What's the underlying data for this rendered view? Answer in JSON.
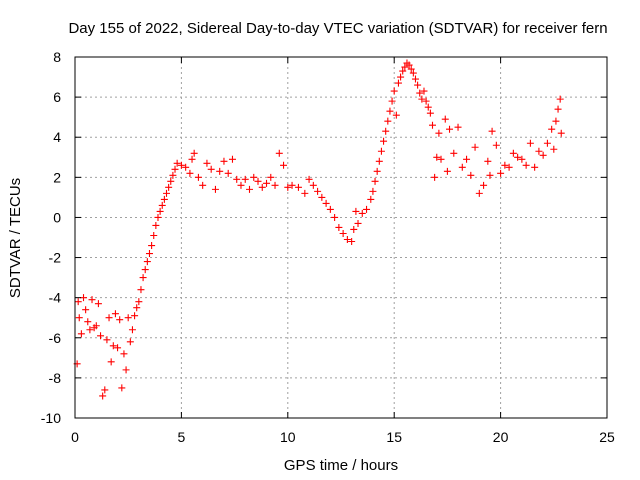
{
  "chart_data": {
    "type": "scatter",
    "title": "Day 155 of 2022, Sidereal Day-to-day VTEC variation (SDTVAR) for receiver fern",
    "xlabel": "GPS time / hours",
    "ylabel": "SDTVAR / TECUs",
    "xlim": [
      0,
      25
    ],
    "ylim": [
      -10,
      8
    ],
    "xticks": [
      0,
      5,
      10,
      15,
      20,
      25
    ],
    "xtick_labels": [
      "0",
      "5",
      "10",
      "15",
      "20",
      "25"
    ],
    "yticks": [
      -10,
      -8,
      -6,
      -4,
      -2,
      0,
      2,
      4,
      6,
      8
    ],
    "ytick_labels": [
      "-10",
      "-8",
      "-6",
      "-4",
      "-2",
      "0",
      "2",
      "4",
      "6",
      "8"
    ],
    "grid": true,
    "marker": "+",
    "color": "#ff0000",
    "series": [
      {
        "name": "SDTVAR",
        "points": [
          [
            0.1,
            -7.3
          ],
          [
            0.15,
            -4.2
          ],
          [
            0.2,
            -5.0
          ],
          [
            0.3,
            -5.8
          ],
          [
            0.4,
            -4.0
          ],
          [
            0.5,
            -4.6
          ],
          [
            0.6,
            -5.2
          ],
          [
            0.7,
            -5.6
          ],
          [
            0.8,
            -4.1
          ],
          [
            0.9,
            -5.5
          ],
          [
            1.0,
            -5.4
          ],
          [
            1.1,
            -4.3
          ],
          [
            1.2,
            -5.9
          ],
          [
            1.3,
            -8.9
          ],
          [
            1.4,
            -8.6
          ],
          [
            1.5,
            -6.1
          ],
          [
            1.6,
            -5.0
          ],
          [
            1.7,
            -7.2
          ],
          [
            1.8,
            -6.4
          ],
          [
            1.9,
            -4.8
          ],
          [
            2.0,
            -6.5
          ],
          [
            2.1,
            -5.1
          ],
          [
            2.2,
            -8.5
          ],
          [
            2.3,
            -6.8
          ],
          [
            2.4,
            -7.6
          ],
          [
            2.5,
            -5.0
          ],
          [
            2.6,
            -6.2
          ],
          [
            2.7,
            -5.6
          ],
          [
            2.8,
            -4.9
          ],
          [
            2.9,
            -4.5
          ],
          [
            3.0,
            -4.2
          ],
          [
            3.1,
            -3.6
          ],
          [
            3.2,
            -3.0
          ],
          [
            3.3,
            -2.6
          ],
          [
            3.4,
            -2.2
          ],
          [
            3.5,
            -1.8
          ],
          [
            3.6,
            -1.4
          ],
          [
            3.7,
            -0.9
          ],
          [
            3.8,
            -0.4
          ],
          [
            3.9,
            0.0
          ],
          [
            4.0,
            0.3
          ],
          [
            4.1,
            0.6
          ],
          [
            4.2,
            0.9
          ],
          [
            4.3,
            1.2
          ],
          [
            4.4,
            1.5
          ],
          [
            4.5,
            1.8
          ],
          [
            4.6,
            2.1
          ],
          [
            4.7,
            2.4
          ],
          [
            4.8,
            2.7
          ],
          [
            5.0,
            2.6
          ],
          [
            5.2,
            2.5
          ],
          [
            5.4,
            2.2
          ],
          [
            5.5,
            2.9
          ],
          [
            5.6,
            3.2
          ],
          [
            5.8,
            2.0
          ],
          [
            6.0,
            1.6
          ],
          [
            6.2,
            2.7
          ],
          [
            6.4,
            2.4
          ],
          [
            6.6,
            1.4
          ],
          [
            6.8,
            2.3
          ],
          [
            7.0,
            2.8
          ],
          [
            7.2,
            2.2
          ],
          [
            7.4,
            2.9
          ],
          [
            7.6,
            1.9
          ],
          [
            7.8,
            1.6
          ],
          [
            8.0,
            1.9
          ],
          [
            8.2,
            1.4
          ],
          [
            8.4,
            2.0
          ],
          [
            8.6,
            1.8
          ],
          [
            8.8,
            1.5
          ],
          [
            9.0,
            1.7
          ],
          [
            9.2,
            2.0
          ],
          [
            9.4,
            1.6
          ],
          [
            9.6,
            3.2
          ],
          [
            9.8,
            2.6
          ],
          [
            10.0,
            1.5
          ],
          [
            10.2,
            1.6
          ],
          [
            10.5,
            1.5
          ],
          [
            10.8,
            1.2
          ],
          [
            11.0,
            1.9
          ],
          [
            11.2,
            1.6
          ],
          [
            11.4,
            1.3
          ],
          [
            11.6,
            1.0
          ],
          [
            11.8,
            0.7
          ],
          [
            12.0,
            0.4
          ],
          [
            12.2,
            0.0
          ],
          [
            12.4,
            -0.5
          ],
          [
            12.6,
            -0.8
          ],
          [
            12.8,
            -1.1
          ],
          [
            13.0,
            -1.2
          ],
          [
            13.1,
            -0.6
          ],
          [
            13.2,
            0.3
          ],
          [
            13.3,
            -0.3
          ],
          [
            13.5,
            0.2
          ],
          [
            13.7,
            0.4
          ],
          [
            13.9,
            0.9
          ],
          [
            14.0,
            1.3
          ],
          [
            14.1,
            1.8
          ],
          [
            14.2,
            2.3
          ],
          [
            14.3,
            2.8
          ],
          [
            14.4,
            3.3
          ],
          [
            14.5,
            3.8
          ],
          [
            14.6,
            4.3
          ],
          [
            14.7,
            4.8
          ],
          [
            14.8,
            5.3
          ],
          [
            14.9,
            5.8
          ],
          [
            15.0,
            6.3
          ],
          [
            15.1,
            5.1
          ],
          [
            15.2,
            6.7
          ],
          [
            15.3,
            7.0
          ],
          [
            15.4,
            7.3
          ],
          [
            15.5,
            7.5
          ],
          [
            15.6,
            7.7
          ],
          [
            15.7,
            7.6
          ],
          [
            15.8,
            7.4
          ],
          [
            15.9,
            7.2
          ],
          [
            16.0,
            6.9
          ],
          [
            16.1,
            6.6
          ],
          [
            16.2,
            6.2
          ],
          [
            16.3,
            5.9
          ],
          [
            16.4,
            6.3
          ],
          [
            16.5,
            5.8
          ],
          [
            16.6,
            5.5
          ],
          [
            16.7,
            5.2
          ],
          [
            16.8,
            4.6
          ],
          [
            16.9,
            2.0
          ],
          [
            17.0,
            3.0
          ],
          [
            17.1,
            4.2
          ],
          [
            17.2,
            2.9
          ],
          [
            17.4,
            4.9
          ],
          [
            17.5,
            2.3
          ],
          [
            17.6,
            4.4
          ],
          [
            17.8,
            3.2
          ],
          [
            18.0,
            4.5
          ],
          [
            18.2,
            2.5
          ],
          [
            18.4,
            2.9
          ],
          [
            18.6,
            2.1
          ],
          [
            18.8,
            3.5
          ],
          [
            19.0,
            1.2
          ],
          [
            19.2,
            1.6
          ],
          [
            19.4,
            2.8
          ],
          [
            19.5,
            2.1
          ],
          [
            19.6,
            4.3
          ],
          [
            19.8,
            3.6
          ],
          [
            20.0,
            2.2
          ],
          [
            20.2,
            2.6
          ],
          [
            20.4,
            2.5
          ],
          [
            20.6,
            3.2
          ],
          [
            20.8,
            3.0
          ],
          [
            21.0,
            2.9
          ],
          [
            21.2,
            2.6
          ],
          [
            21.4,
            3.7
          ],
          [
            21.6,
            2.5
          ],
          [
            21.8,
            3.3
          ],
          [
            22.0,
            3.1
          ],
          [
            22.2,
            3.7
          ],
          [
            22.4,
            4.4
          ],
          [
            22.5,
            3.4
          ],
          [
            22.6,
            4.8
          ],
          [
            22.7,
            5.4
          ],
          [
            22.8,
            5.9
          ],
          [
            22.85,
            4.2
          ]
        ]
      }
    ]
  }
}
